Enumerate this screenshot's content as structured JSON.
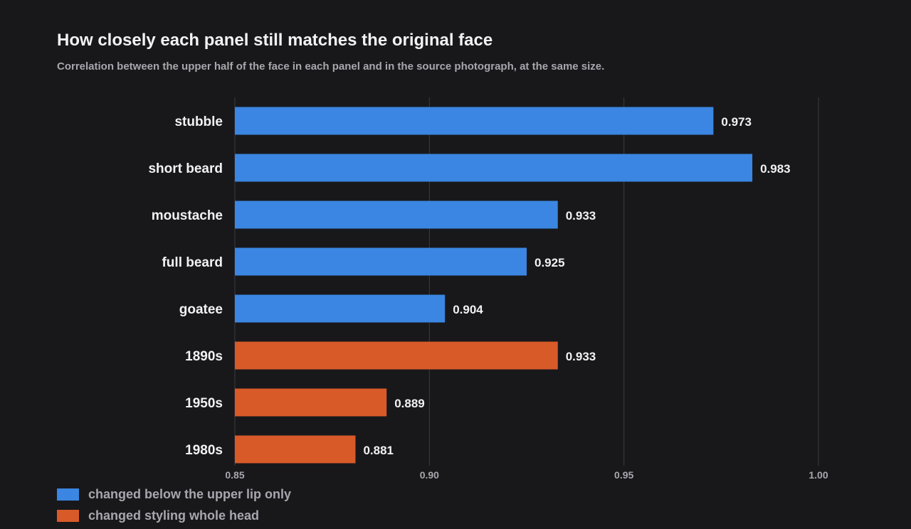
{
  "title": "How closely each panel still matches the original face",
  "subtitle": "Correlation between the upper half of the face in each panel and in the source photograph, at the same size.",
  "colors": {
    "background": "#18181b",
    "bar_blue": "#3a86e2",
    "bar_orange": "#d95a29",
    "grid": "#3a3a40",
    "text": "#f2f2f2",
    "muted": "#a7a7ad"
  },
  "legend": [
    {
      "label": "changed below the upper lip only",
      "color": "#3a86e2"
    },
    {
      "label": "changed styling whole head",
      "color": "#d95a29"
    }
  ],
  "chart_data": {
    "type": "bar",
    "orientation": "horizontal",
    "title": "How closely each panel still matches the original face",
    "subtitle": "Correlation between the upper half of the face in each panel and in the source photograph, at the same size.",
    "categories": [
      "stubble",
      "short beard",
      "moustache",
      "full beard",
      "goatee",
      "1890s",
      "1950s",
      "1980s"
    ],
    "values": [
      0.973,
      0.983,
      0.933,
      0.925,
      0.904,
      0.933,
      0.889,
      0.881
    ],
    "value_labels": [
      "0.973",
      "0.983",
      "0.933",
      "0.925",
      "0.904",
      "0.933",
      "0.889",
      "0.881"
    ],
    "groups": [
      "blue",
      "blue",
      "blue",
      "blue",
      "blue",
      "orange",
      "orange",
      "orange"
    ],
    "xlim": [
      0.85,
      1.0
    ],
    "xticks": [
      0.85,
      0.9,
      0.95,
      1.0
    ],
    "xtick_labels": [
      "0.85",
      "0.90",
      "0.95",
      "1.00"
    ],
    "xlabel": "",
    "ylabel": "",
    "grid": true,
    "legend_position": "bottom-left"
  }
}
